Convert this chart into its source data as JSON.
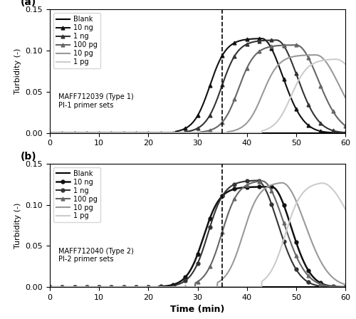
{
  "threshold_time": 35,
  "xlim": [
    0,
    60
  ],
  "ylim": [
    0,
    0.15
  ],
  "yticks": [
    0,
    0.05,
    0.1,
    0.15
  ],
  "xticks": [
    0,
    10,
    20,
    30,
    40,
    50,
    60
  ],
  "xlabel": "Time (min)",
  "ylabel": "Turbidity (-)",
  "panel_a": {
    "label": "(a)",
    "annotation": "MAFF712039 (Type 1)\nPI-1 primer sets",
    "series": [
      {
        "name": "Blank",
        "color": "#000000",
        "lw": 1.5,
        "marker": null,
        "t0": 999,
        "peak": 0.115,
        "peak_t": 45,
        "decay": 0.03
      },
      {
        "name": "10 ng",
        "color": "#111111",
        "lw": 1.5,
        "marker": "^",
        "t0": 25.5,
        "peak": 0.115,
        "peak_t": 43,
        "decay": 0.028
      },
      {
        "name": "1 ng",
        "color": "#333333",
        "lw": 1.5,
        "marker": "^",
        "t0": 27.5,
        "peak": 0.113,
        "peak_t": 46,
        "decay": 0.028
      },
      {
        "name": "100 pg",
        "color": "#666666",
        "lw": 1.5,
        "marker": "^",
        "t0": 30.5,
        "peak": 0.107,
        "peak_t": 50,
        "decay": 0.025
      },
      {
        "name": "10 pg",
        "color": "#999999",
        "lw": 1.5,
        "marker": null,
        "t0": 36.0,
        "peak": 0.095,
        "peak_t": 54,
        "decay": 0.022
      },
      {
        "name": "1 pg",
        "color": "#cccccc",
        "lw": 1.5,
        "marker": null,
        "t0": 43.0,
        "peak": 0.09,
        "peak_t": 58,
        "decay": 0.018
      }
    ]
  },
  "panel_b": {
    "label": "(b)",
    "annotation": "MAFF712040 (Type 2)\nPI-2 primer sets",
    "series": [
      {
        "name": "Blank",
        "color": "#000000",
        "lw": 1.5,
        "marker": null,
        "t0": 999,
        "peak": 0.125,
        "peak_t": 48,
        "decay": 0.03
      },
      {
        "name": "10 ng",
        "color": "#111111",
        "lw": 1.8,
        "marker": "o",
        "t0": 22.0,
        "peak": 0.122,
        "peak_t": 45,
        "decay": 0.032
      },
      {
        "name": "1 ng",
        "color": "#333333",
        "lw": 1.5,
        "marker": "o",
        "t0": 25.5,
        "peak": 0.13,
        "peak_t": 42,
        "decay": 0.028
      },
      {
        "name": "100 pg",
        "color": "#666666",
        "lw": 1.5,
        "marker": "^",
        "t0": 29.5,
        "peak": 0.13,
        "peak_t": 43,
        "decay": 0.025
      },
      {
        "name": "10 pg",
        "color": "#999999",
        "lw": 1.5,
        "marker": null,
        "t0": 34.0,
        "peak": 0.128,
        "peak_t": 47,
        "decay": 0.022
      },
      {
        "name": "1 pg",
        "color": "#cccccc",
        "lw": 1.5,
        "marker": null,
        "t0": 43.0,
        "peak": 0.128,
        "peak_t": 55,
        "decay": 0.012
      }
    ]
  }
}
